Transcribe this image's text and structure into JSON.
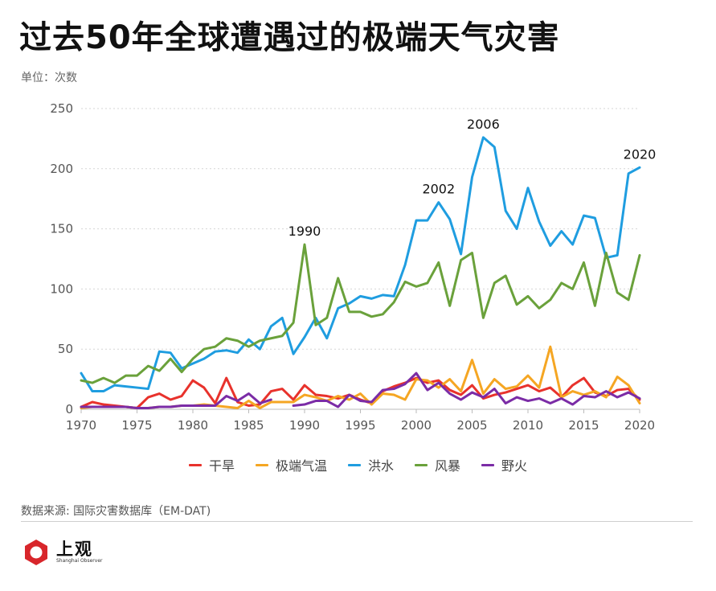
{
  "title": "过去50年全球遭遇过的极端天气灾害",
  "unit_label": "单位：次数",
  "source": "数据来源: 国际灾害数据库（EM-DAT)",
  "logo": {
    "name_cn": "上观",
    "name_en": "Shanghai Observer",
    "icon": "hexagon-ring-logo-icon"
  },
  "chart_data": {
    "type": "line",
    "x": [
      1970,
      1971,
      1972,
      1973,
      1974,
      1975,
      1976,
      1977,
      1978,
      1979,
      1980,
      1981,
      1982,
      1983,
      1984,
      1985,
      1986,
      1987,
      1988,
      1989,
      1990,
      1991,
      1992,
      1993,
      1994,
      1995,
      1996,
      1997,
      1998,
      1999,
      2000,
      2001,
      2002,
      2003,
      2004,
      2005,
      2006,
      2007,
      2008,
      2009,
      2010,
      2011,
      2012,
      2013,
      2014,
      2015,
      2016,
      2017,
      2018,
      2019,
      2020
    ],
    "xlim": [
      1970,
      2020
    ],
    "ylim": [
      0,
      250
    ],
    "xticks": [
      1970,
      1975,
      1980,
      1985,
      1990,
      1995,
      2000,
      2005,
      2010,
      2015,
      2020
    ],
    "yticks": [
      0,
      50,
      100,
      150,
      200,
      250
    ],
    "grid": "horizontal-dotted",
    "legend_position": "bottom",
    "series": [
      {
        "name": "干旱",
        "color": "#e8322c",
        "values": [
          2,
          6,
          4,
          3,
          2,
          1,
          10,
          13,
          8,
          11,
          24,
          18,
          5,
          26,
          6,
          3,
          4,
          15,
          17,
          8,
          20,
          12,
          11,
          9,
          12,
          8,
          5,
          15,
          19,
          22,
          26,
          22,
          24,
          16,
          12,
          20,
          9,
          12,
          14,
          17,
          20,
          15,
          18,
          10,
          20,
          26,
          14,
          11,
          16,
          17,
          8
        ]
      },
      {
        "name": "极端气温",
        "color": "#f5a623",
        "values": [
          1,
          2,
          2,
          2,
          2,
          1,
          1,
          2,
          2,
          3,
          3,
          4,
          3,
          2,
          1,
          7,
          1,
          6,
          6,
          6,
          12,
          10,
          7,
          11,
          8,
          13,
          4,
          13,
          12,
          8,
          25,
          24,
          18,
          25,
          15,
          41,
          13,
          25,
          17,
          19,
          28,
          18,
          52,
          10,
          15,
          12,
          15,
          10,
          27,
          20,
          5
        ]
      },
      {
        "name": "洪水",
        "color": "#1f9de0",
        "values": [
          30,
          15,
          15,
          20,
          19,
          18,
          17,
          48,
          47,
          34,
          38,
          42,
          48,
          49,
          47,
          58,
          50,
          69,
          76,
          46,
          60,
          76,
          59,
          84,
          88,
          94,
          92,
          95,
          94,
          120,
          157,
          157,
          172,
          158,
          129,
          193,
          226,
          218,
          165,
          150,
          184,
          156,
          136,
          148,
          137,
          161,
          159,
          126,
          128,
          196,
          201
        ]
      },
      {
        "name": "风暴",
        "color": "#6aa13b",
        "values": [
          24,
          22,
          26,
          22,
          28,
          28,
          36,
          32,
          42,
          31,
          42,
          50,
          52,
          59,
          57,
          52,
          57,
          59,
          61,
          72,
          137,
          70,
          76,
          109,
          81,
          81,
          77,
          79,
          89,
          106,
          102,
          105,
          122,
          86,
          124,
          130,
          76,
          105,
          111,
          87,
          94,
          84,
          91,
          105,
          100,
          122,
          86,
          130,
          97,
          91,
          128
        ]
      },
      {
        "name": "野火",
        "color": "#7b2ca6",
        "values": [
          2,
          2,
          2,
          2,
          2,
          1,
          1,
          2,
          2,
          3,
          3,
          3,
          3,
          11,
          7,
          13,
          5,
          8,
          null,
          3,
          4,
          7,
          7,
          2,
          12,
          7,
          6,
          16,
          17,
          21,
          30,
          16,
          22,
          13,
          8,
          14,
          10,
          17,
          5,
          10,
          7,
          9,
          5,
          9,
          4,
          11,
          10,
          15,
          10,
          14,
          9
        ]
      }
    ],
    "annotations": [
      {
        "label": "1990",
        "x": 1990,
        "y": 137
      },
      {
        "label": "2002",
        "x": 2002,
        "y": 172
      },
      {
        "label": "2006",
        "x": 2006,
        "y": 226
      },
      {
        "label": "2020",
        "x": 2020,
        "y": 201
      }
    ]
  }
}
